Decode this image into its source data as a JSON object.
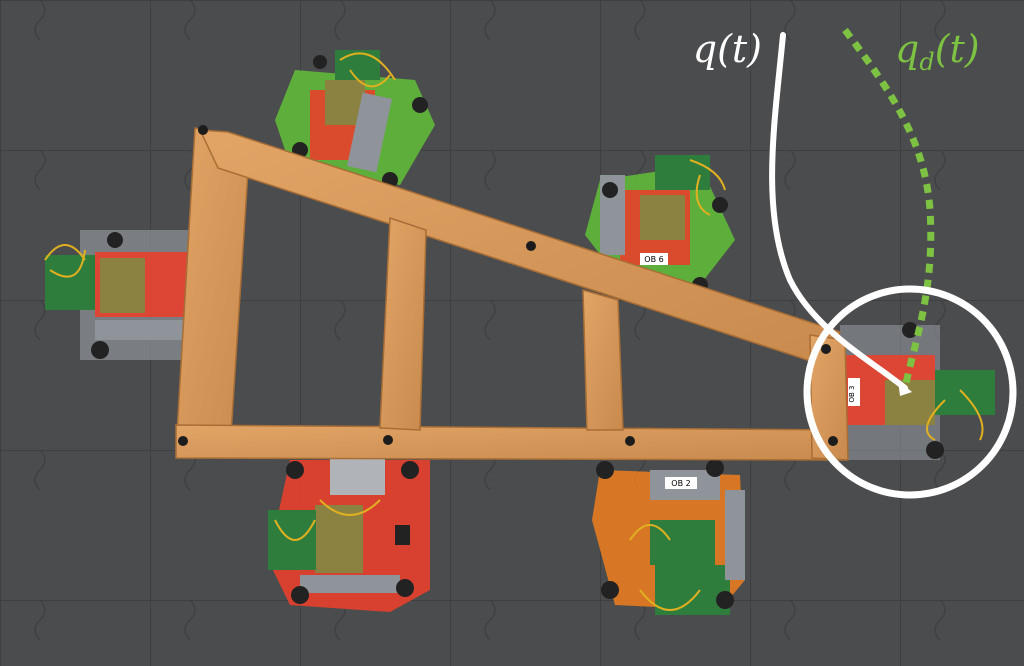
{
  "annotations": {
    "actual_trajectory_label": "q(t)",
    "desired_trajectory_label": "q_d(t)",
    "desired_label_base": "q",
    "desired_label_sub": "d",
    "desired_label_arg": "(t)"
  },
  "robots": [
    {
      "name": "robot-top-left",
      "tag": ""
    },
    {
      "name": "robot-top-right",
      "tag": "OB 6"
    },
    {
      "name": "robot-left",
      "tag": ""
    },
    {
      "name": "robot-right-highlighted",
      "tag": "OB 3"
    },
    {
      "name": "robot-bottom-left",
      "tag": ""
    },
    {
      "name": "robot-bottom-right",
      "tag": "OB 2"
    }
  ],
  "colors": {
    "floor": "#4a4b4d",
    "wood": "#d79a5b",
    "actual_trajectory": "#ffffff",
    "desired_trajectory": "#7dc242",
    "robot_green": "#5fb33a",
    "robot_red": "#e8402c",
    "robot_orange": "#f07f1f",
    "pcb_green": "#2f7d3c"
  }
}
